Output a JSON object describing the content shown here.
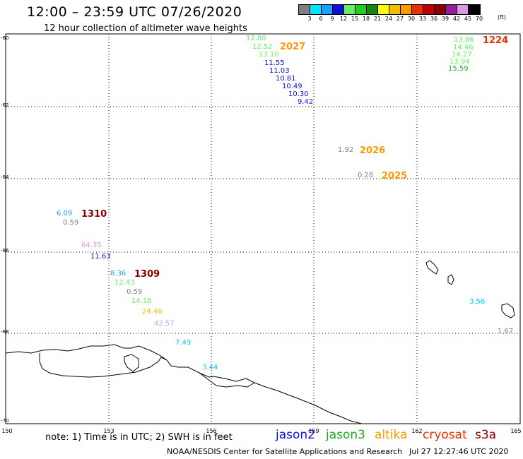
{
  "header": {
    "title": "12:00 – 23:59 UTC 07/26/2020",
    "subtitle": "12 hour collection of altimeter wave heights"
  },
  "color_scale": {
    "unit_label": "(ft)",
    "levels": [
      {
        "label": "3",
        "color": "#808080"
      },
      {
        "label": "6",
        "color": "#00e5ff"
      },
      {
        "label": "9",
        "color": "#1aa0ff"
      },
      {
        "label": "12",
        "color": "#1010d8"
      },
      {
        "label": "15",
        "color": "#66ee66"
      },
      {
        "label": "18",
        "color": "#22cc22"
      },
      {
        "label": "21",
        "color": "#118811"
      },
      {
        "label": "24",
        "color": "#ffff00"
      },
      {
        "label": "27",
        "color": "#f0c000"
      },
      {
        "label": "30",
        "color": "#ff9900"
      },
      {
        "label": "33",
        "color": "#e83000"
      },
      {
        "label": "36",
        "color": "#c00000"
      },
      {
        "label": "39",
        "color": "#8a0000"
      },
      {
        "label": "42",
        "color": "#9a1a9a"
      },
      {
        "label": "45",
        "color": "#d899e0"
      },
      {
        "label": "70",
        "color": "#000000"
      }
    ]
  },
  "map": {
    "lat_ticks": [
      "-60",
      "-62",
      "-64",
      "-66",
      "-68",
      "-70"
    ],
    "lon_ticks": [
      "150",
      "153",
      "156",
      "159",
      "162",
      "165"
    ]
  },
  "wave_heights": [
    {
      "text": "12.80",
      "color": "#66ee66"
    },
    {
      "text": "12.52",
      "color": "#66ee66"
    },
    {
      "text": "13.10",
      "color": "#66ee66"
    },
    {
      "text": "11.55",
      "color": "#1010d8"
    },
    {
      "text": "11.03",
      "color": "#1010d8"
    },
    {
      "text": "10.81",
      "color": "#1010d8"
    },
    {
      "text": "10.49",
      "color": "#1010d8"
    },
    {
      "text": "10.30",
      "color": "#1010d8"
    },
    {
      "text": "9.42",
      "color": "#1010d8"
    },
    {
      "text": "1.92",
      "color": "#808080"
    },
    {
      "text": "0.28",
      "color": "#808080"
    },
    {
      "text": "13.86",
      "color": "#66ee66"
    },
    {
      "text": "14.46",
      "color": "#66ee66"
    },
    {
      "text": "14.27",
      "color": "#66ee66"
    },
    {
      "text": "13.94",
      "color": "#66ee66"
    },
    {
      "text": "15.59",
      "color": "#22aa22"
    },
    {
      "text": "6.09",
      "color": "#1aa0ff"
    },
    {
      "text": "0.59",
      "color": "#808080"
    },
    {
      "text": "64.35",
      "color": "#d899e0"
    },
    {
      "text": "11.63",
      "color": "#1010d8"
    },
    {
      "text": "8.36",
      "color": "#1aa0ff"
    },
    {
      "text": "12.43",
      "color": "#66ee66"
    },
    {
      "text": "0.59",
      "color": "#808080"
    },
    {
      "text": "14.16",
      "color": "#66ee66"
    },
    {
      "text": "24.46",
      "color": "#f0c000"
    },
    {
      "text": "42.57",
      "color": "#aaaaff"
    },
    {
      "text": "7.49",
      "color": "#00c8f0"
    },
    {
      "text": "3.44",
      "color": "#00c8f0"
    },
    {
      "text": "3.56",
      "color": "#00c8f0"
    },
    {
      "text": "1.67",
      "color": "#808080"
    }
  ],
  "pass_times": [
    {
      "text": "2027",
      "color": "#ff9900"
    },
    {
      "text": "1224",
      "color": "#e83000"
    },
    {
      "text": "2026",
      "color": "#ff9900"
    },
    {
      "text": "2025",
      "color": "#ff9900"
    },
    {
      "text": "1310",
      "color": "#8a0000"
    },
    {
      "text": "1309",
      "color": "#8a0000"
    }
  ],
  "footer": {
    "note": "note:  1) Time is in UTC; 2) SWH is in feet",
    "satellites": [
      {
        "name": "jason2",
        "color": "#1010d8"
      },
      {
        "name": "jason3",
        "color": "#22aa22"
      },
      {
        "name": "altika",
        "color": "#ff9900"
      },
      {
        "name": "cryosat",
        "color": "#e83000"
      },
      {
        "name": "s3a",
        "color": "#8a0000"
      }
    ],
    "credit": "NOAA/NESDIS Center for Satellite Applications and Research",
    "timestamp": "Jul 27 12:27:46 UTC 2020"
  }
}
